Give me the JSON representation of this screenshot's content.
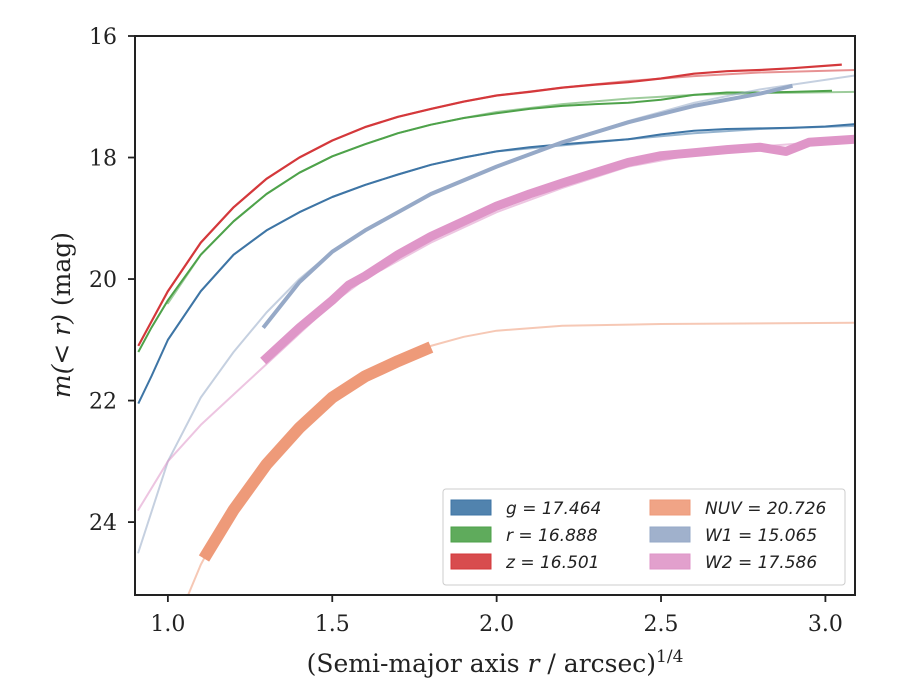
{
  "chart_data": {
    "type": "line",
    "xlabel_main": "(Semi-major axis ",
    "xlabel_var": "r",
    "xlabel_tail": " / arcsec)",
    "xlabel_sup": "1/4",
    "ylabel_pre": "m(< r)",
    "ylabel_post": " (mag)",
    "xlim": [
      0.9,
      3.09
    ],
    "ylim": [
      16.0,
      25.2
    ],
    "y_inverted": true,
    "x_ticks": [
      1.0,
      1.5,
      2.0,
      2.5,
      3.0
    ],
    "x_tick_labels": [
      "1.0",
      "1.5",
      "2.0",
      "2.5",
      "3.0"
    ],
    "y_ticks": [
      16,
      18,
      20,
      22,
      24
    ],
    "y_tick_labels": [
      "16",
      "18",
      "20",
      "22",
      "24"
    ],
    "grid": false,
    "legend_position": "lower-right",
    "series": [
      {
        "name": "g = 17.464",
        "color": "#3e75a5",
        "model": [
          [
            1.0,
            21.0
          ],
          [
            1.1,
            20.2
          ],
          [
            1.2,
            19.6
          ],
          [
            1.3,
            19.2
          ],
          [
            1.4,
            18.9
          ],
          [
            1.5,
            18.65
          ],
          [
            1.6,
            18.45
          ],
          [
            1.7,
            18.28
          ],
          [
            1.8,
            18.12
          ],
          [
            1.9,
            18.0
          ],
          [
            2.0,
            17.9
          ],
          [
            2.2,
            17.8
          ],
          [
            2.4,
            17.7
          ],
          [
            2.6,
            17.6
          ],
          [
            2.8,
            17.53
          ],
          [
            3.09,
            17.48
          ]
        ],
        "data": [
          [
            0.91,
            22.05
          ],
          [
            0.95,
            21.6
          ],
          [
            1.0,
            21.0
          ],
          [
            1.1,
            20.2
          ],
          [
            1.2,
            19.6
          ],
          [
            1.3,
            19.2
          ],
          [
            1.4,
            18.9
          ],
          [
            1.5,
            18.65
          ],
          [
            1.6,
            18.45
          ],
          [
            1.7,
            18.28
          ],
          [
            1.8,
            18.12
          ],
          [
            1.9,
            18.0
          ],
          [
            2.0,
            17.9
          ],
          [
            2.1,
            17.83
          ],
          [
            2.2,
            17.78
          ],
          [
            2.3,
            17.74
          ],
          [
            2.4,
            17.7
          ],
          [
            2.5,
            17.62
          ],
          [
            2.6,
            17.56
          ],
          [
            2.7,
            17.53
          ],
          [
            2.8,
            17.52
          ],
          [
            2.9,
            17.51
          ],
          [
            3.0,
            17.49
          ],
          [
            3.09,
            17.45
          ]
        ],
        "width": 2
      },
      {
        "name": "r = 16.888",
        "color": "#4ea24a",
        "model": [
          [
            1.0,
            20.4
          ],
          [
            1.1,
            19.6
          ],
          [
            1.2,
            19.05
          ],
          [
            1.3,
            18.6
          ],
          [
            1.4,
            18.25
          ],
          [
            1.5,
            17.98
          ],
          [
            1.6,
            17.78
          ],
          [
            1.7,
            17.6
          ],
          [
            1.8,
            17.46
          ],
          [
            1.9,
            17.35
          ],
          [
            2.0,
            17.25
          ],
          [
            2.2,
            17.12
          ],
          [
            2.4,
            17.03
          ],
          [
            2.6,
            16.97
          ],
          [
            2.8,
            16.94
          ],
          [
            3.09,
            16.92
          ]
        ],
        "data": [
          [
            0.91,
            21.2
          ],
          [
            0.95,
            20.8
          ],
          [
            1.0,
            20.35
          ],
          [
            1.1,
            19.6
          ],
          [
            1.2,
            19.05
          ],
          [
            1.3,
            18.6
          ],
          [
            1.4,
            18.25
          ],
          [
            1.5,
            17.98
          ],
          [
            1.6,
            17.78
          ],
          [
            1.7,
            17.6
          ],
          [
            1.8,
            17.46
          ],
          [
            1.9,
            17.35
          ],
          [
            2.0,
            17.27
          ],
          [
            2.1,
            17.2
          ],
          [
            2.2,
            17.15
          ],
          [
            2.3,
            17.12
          ],
          [
            2.4,
            17.1
          ],
          [
            2.5,
            17.05
          ],
          [
            2.6,
            16.97
          ],
          [
            2.7,
            16.93
          ],
          [
            2.8,
            16.93
          ],
          [
            2.9,
            16.92
          ],
          [
            3.02,
            16.9
          ]
        ],
        "width": 2
      },
      {
        "name": "z = 16.501",
        "color": "#d4383b",
        "model": [
          [
            1.0,
            20.2
          ],
          [
            1.1,
            19.4
          ],
          [
            1.2,
            18.82
          ],
          [
            1.3,
            18.35
          ],
          [
            1.4,
            18.0
          ],
          [
            1.5,
            17.72
          ],
          [
            1.6,
            17.5
          ],
          [
            1.7,
            17.33
          ],
          [
            1.8,
            17.2
          ],
          [
            1.9,
            17.08
          ],
          [
            2.0,
            16.98
          ],
          [
            2.2,
            16.85
          ],
          [
            2.4,
            16.74
          ],
          [
            2.6,
            16.66
          ],
          [
            2.8,
            16.6
          ],
          [
            3.09,
            16.56
          ]
        ],
        "data": [
          [
            0.91,
            21.1
          ],
          [
            0.95,
            20.7
          ],
          [
            1.0,
            20.2
          ],
          [
            1.1,
            19.4
          ],
          [
            1.2,
            18.82
          ],
          [
            1.3,
            18.35
          ],
          [
            1.4,
            18.0
          ],
          [
            1.5,
            17.72
          ],
          [
            1.6,
            17.5
          ],
          [
            1.7,
            17.33
          ],
          [
            1.8,
            17.2
          ],
          [
            1.9,
            17.08
          ],
          [
            2.0,
            16.98
          ],
          [
            2.1,
            16.92
          ],
          [
            2.2,
            16.85
          ],
          [
            2.3,
            16.8
          ],
          [
            2.4,
            16.76
          ],
          [
            2.5,
            16.7
          ],
          [
            2.6,
            16.62
          ],
          [
            2.7,
            16.58
          ],
          [
            2.8,
            16.56
          ],
          [
            2.9,
            16.53
          ],
          [
            3.05,
            16.47
          ]
        ],
        "width": 2.2
      },
      {
        "name": "NUV = 20.726",
        "color": "#ee9a79",
        "model": [
          [
            1.0,
            26.0
          ],
          [
            1.1,
            24.7
          ],
          [
            1.2,
            23.7
          ],
          [
            1.3,
            23.0
          ],
          [
            1.4,
            22.4
          ],
          [
            1.5,
            21.95
          ],
          [
            1.6,
            21.6
          ],
          [
            1.7,
            21.3
          ],
          [
            1.8,
            21.1
          ],
          [
            1.9,
            20.95
          ],
          [
            2.0,
            20.85
          ],
          [
            2.2,
            20.77
          ],
          [
            2.5,
            20.74
          ],
          [
            3.09,
            20.72
          ]
        ],
        "data": [
          [
            1.11,
            24.6
          ],
          [
            1.2,
            23.8
          ],
          [
            1.3,
            23.05
          ],
          [
            1.4,
            22.45
          ],
          [
            1.5,
            21.95
          ],
          [
            1.6,
            21.6
          ],
          [
            1.7,
            21.35
          ],
          [
            1.8,
            21.12
          ]
        ],
        "width": 12
      },
      {
        "name": "W1 = 15.065",
        "color": "#96a9c7",
        "model": [
          [
            0.91,
            24.5
          ],
          [
            1.0,
            23.0
          ],
          [
            1.1,
            21.95
          ],
          [
            1.2,
            21.2
          ],
          [
            1.3,
            20.55
          ],
          [
            1.4,
            20.0
          ],
          [
            1.5,
            19.55
          ],
          [
            1.6,
            19.2
          ],
          [
            1.8,
            18.6
          ],
          [
            2.0,
            18.15
          ],
          [
            2.2,
            17.75
          ],
          [
            2.4,
            17.4
          ],
          [
            2.6,
            17.1
          ],
          [
            2.8,
            16.88
          ],
          [
            3.09,
            16.65
          ]
        ],
        "data": [
          [
            1.29,
            20.8
          ],
          [
            1.4,
            20.05
          ],
          [
            1.5,
            19.55
          ],
          [
            1.6,
            19.2
          ],
          [
            1.8,
            18.6
          ],
          [
            2.0,
            18.15
          ],
          [
            2.2,
            17.75
          ],
          [
            2.4,
            17.42
          ],
          [
            2.6,
            17.15
          ],
          [
            2.8,
            16.95
          ],
          [
            2.9,
            16.82
          ]
        ],
        "width": 4
      },
      {
        "name": "W2 = 17.586",
        "color": "#df96c8",
        "model": [
          [
            0.91,
            23.8
          ],
          [
            1.0,
            23.0
          ],
          [
            1.1,
            22.4
          ],
          [
            1.2,
            21.9
          ],
          [
            1.3,
            21.4
          ],
          [
            1.4,
            20.9
          ],
          [
            1.5,
            20.4
          ],
          [
            1.6,
            20.0
          ],
          [
            1.8,
            19.4
          ],
          [
            2.0,
            18.9
          ],
          [
            2.2,
            18.5
          ],
          [
            2.4,
            18.15
          ],
          [
            2.6,
            17.95
          ],
          [
            2.8,
            17.82
          ],
          [
            3.09,
            17.7
          ]
        ],
        "data": [
          [
            1.29,
            21.35
          ],
          [
            1.4,
            20.8
          ],
          [
            1.5,
            20.35
          ],
          [
            1.55,
            20.1
          ],
          [
            1.6,
            19.95
          ],
          [
            1.7,
            19.6
          ],
          [
            1.8,
            19.3
          ],
          [
            1.9,
            19.05
          ],
          [
            2.0,
            18.8
          ],
          [
            2.1,
            18.6
          ],
          [
            2.2,
            18.42
          ],
          [
            2.3,
            18.25
          ],
          [
            2.4,
            18.08
          ],
          [
            2.5,
            17.97
          ],
          [
            2.6,
            17.92
          ],
          [
            2.7,
            17.87
          ],
          [
            2.8,
            17.83
          ],
          [
            2.88,
            17.9
          ],
          [
            2.95,
            17.75
          ],
          [
            3.09,
            17.7
          ]
        ],
        "width": 9
      }
    ]
  }
}
